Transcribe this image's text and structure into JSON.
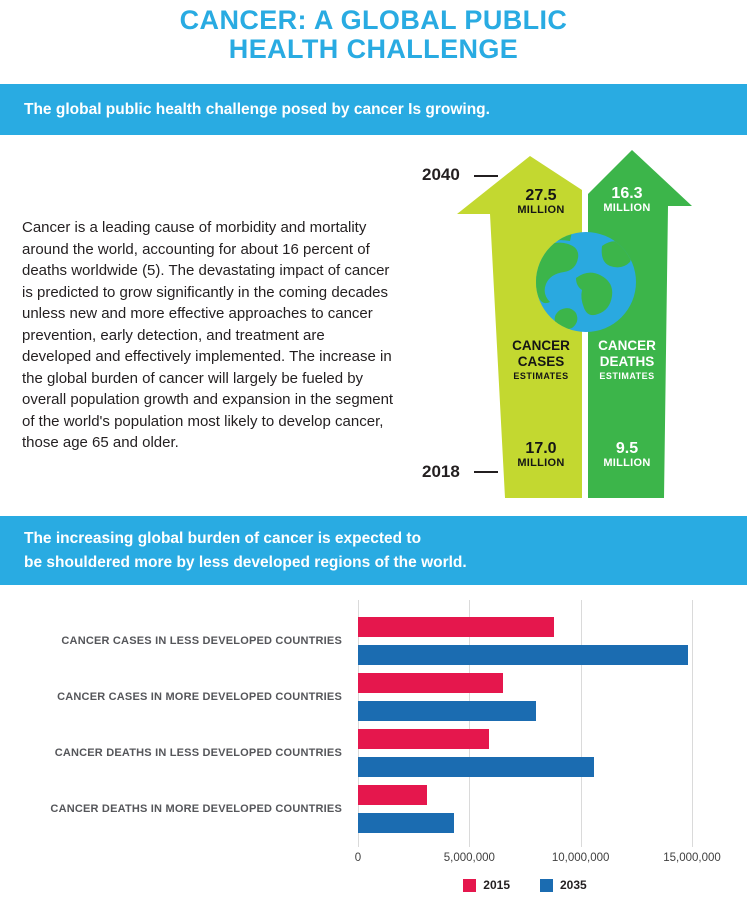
{
  "title": {
    "line1": "CANCER: A GLOBAL PUBLIC",
    "line2": "HEALTH CHALLENGE"
  },
  "banners": [
    {
      "text": "The global public health challenge posed by cancer Is growing."
    },
    {
      "line1": "The increasing global burden of cancer is expected to",
      "line2": "be shouldered more by less developed regions of the world."
    }
  ],
  "intro": {
    "paragraph": "Cancer is a leading cause of morbidity and mortality around the world, accounting for about 16 percent of deaths worldwide (5). The devastating impact of cancer is predicted to grow significantly in the coming decades unless new and more effective approaches to cancer prevention, early detection, and treatment are developed and effectively implemented. The increase in the global burden of cancer will largely be fueled by overall population growth and expansion in the segment of the world's population most likely to develop cancer, those age 65 and older."
  },
  "arrow_chart": {
    "year_top": "2040",
    "year_bottom": "2018",
    "cases": {
      "top_value": "27.5",
      "top_unit": "MILLION",
      "name_line1": "CANCER",
      "name_line2": "CASES",
      "name_line3": "ESTIMATES",
      "bottom_value": "17.0",
      "bottom_unit": "MILLION"
    },
    "deaths": {
      "top_value": "16.3",
      "top_unit": "MILLION",
      "name_line1": "CANCER",
      "name_line2": "DEATHS",
      "name_line3": "ESTIMATES",
      "bottom_value": "9.5",
      "bottom_unit": "MILLION"
    }
  },
  "colors": {
    "cyan": "#29ABE2",
    "lime": "#C3D830",
    "green": "#3CB54A",
    "globe_blue": "#2AA9E0",
    "series_2015": "#E5174D",
    "series_2035": "#1B6CB1"
  },
  "chart_data": [
    {
      "type": "bar",
      "orientation": "horizontal",
      "title": "",
      "categories": [
        "CANCER CASES IN LESS DEVELOPED COUNTRIES",
        "CANCER CASES IN MORE DEVELOPED COUNTRIES",
        "CANCER DEATHS IN LESS DEVELOPED COUNTRIES",
        "CANCER DEATHS IN MORE DEVELOPED COUNTRIES"
      ],
      "series": [
        {
          "name": "2015",
          "color": "#E5174D",
          "values": [
            8800000,
            6500000,
            5900000,
            3100000
          ]
        },
        {
          "name": "2035",
          "color": "#1B6CB1",
          "values": [
            14800000,
            8000000,
            10600000,
            4300000
          ]
        }
      ],
      "xlim": [
        0,
        15000000
      ],
      "x_ticks": [
        0,
        5000000,
        10000000,
        15000000
      ],
      "x_tick_labels": [
        "0",
        "5,000,000",
        "10,000,000",
        "15,000,000"
      ],
      "grid": true,
      "legend_position": "bottom"
    },
    {
      "type": "arrow-comparison",
      "title": "Cancer cases and deaths estimates, 2018 vs 2040 (millions)",
      "years": [
        "2018",
        "2040"
      ],
      "series": [
        {
          "name": "CANCER CASES ESTIMATES",
          "values": {
            "2018": 17.0,
            "2040": 27.5
          }
        },
        {
          "name": "CANCER DEATHS ESTIMATES",
          "values": {
            "2018": 9.5,
            "2040": 16.3
          }
        }
      ]
    }
  ]
}
